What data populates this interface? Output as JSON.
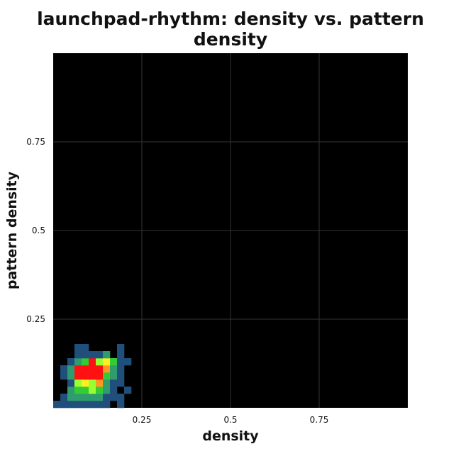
{
  "chart_data": {
    "type": "heatmap",
    "title": "launchpad-rhythm: density vs. pattern density",
    "xlabel": "density",
    "ylabel": "pattern density",
    "xlim": [
      0,
      1
    ],
    "ylim": [
      0,
      1
    ],
    "x_ticks": [
      "0.25",
      "0.5",
      "0.75"
    ],
    "y_ticks": [
      "0.25",
      "0.5",
      "0.75"
    ],
    "x_tick_values": [
      0.25,
      0.5,
      0.75
    ],
    "y_tick_values": [
      0.25,
      0.5,
      0.75
    ],
    "grid": true,
    "background_color": "#000000",
    "grid_color": "#333333",
    "colorscale": [
      "#0f2a5c",
      "#1f4f7a",
      "#2f9c6e",
      "#33cc33",
      "#99ff33",
      "#ffee22",
      "#ff9922",
      "#ff1111"
    ],
    "bin_size": 0.02,
    "cells": [
      {
        "x": 0.0,
        "y": 0.0,
        "v": 1
      },
      {
        "x": 0.02,
        "y": 0.0,
        "v": 1
      },
      {
        "x": 0.04,
        "y": 0.0,
        "v": 1
      },
      {
        "x": 0.06,
        "y": 0.0,
        "v": 1
      },
      {
        "x": 0.08,
        "y": 0.0,
        "v": 1
      },
      {
        "x": 0.1,
        "y": 0.0,
        "v": 1
      },
      {
        "x": 0.12,
        "y": 0.0,
        "v": 1
      },
      {
        "x": 0.14,
        "y": 0.0,
        "v": 1
      },
      {
        "x": 0.18,
        "y": 0.0,
        "v": 1
      },
      {
        "x": 0.02,
        "y": 0.02,
        "v": 1
      },
      {
        "x": 0.04,
        "y": 0.02,
        "v": 2
      },
      {
        "x": 0.06,
        "y": 0.02,
        "v": 2
      },
      {
        "x": 0.08,
        "y": 0.02,
        "v": 2
      },
      {
        "x": 0.1,
        "y": 0.02,
        "v": 2
      },
      {
        "x": 0.12,
        "y": 0.02,
        "v": 2
      },
      {
        "x": 0.14,
        "y": 0.02,
        "v": 1
      },
      {
        "x": 0.16,
        "y": 0.02,
        "v": 1
      },
      {
        "x": 0.18,
        "y": 0.02,
        "v": 1
      },
      {
        "x": 0.04,
        "y": 0.04,
        "v": 2
      },
      {
        "x": 0.06,
        "y": 0.04,
        "v": 3
      },
      {
        "x": 0.08,
        "y": 0.04,
        "v": 3
      },
      {
        "x": 0.1,
        "y": 0.04,
        "v": 4
      },
      {
        "x": 0.12,
        "y": 0.04,
        "v": 3
      },
      {
        "x": 0.14,
        "y": 0.04,
        "v": 2
      },
      {
        "x": 0.16,
        "y": 0.04,
        "v": 1
      },
      {
        "x": 0.2,
        "y": 0.04,
        "v": 1
      },
      {
        "x": 0.04,
        "y": 0.06,
        "v": 1
      },
      {
        "x": 0.06,
        "y": 0.06,
        "v": 4
      },
      {
        "x": 0.08,
        "y": 0.06,
        "v": 5
      },
      {
        "x": 0.1,
        "y": 0.06,
        "v": 4
      },
      {
        "x": 0.12,
        "y": 0.06,
        "v": 6
      },
      {
        "x": 0.14,
        "y": 0.06,
        "v": 2
      },
      {
        "x": 0.16,
        "y": 0.06,
        "v": 1
      },
      {
        "x": 0.18,
        "y": 0.06,
        "v": 1
      },
      {
        "x": 0.02,
        "y": 0.08,
        "v": 1
      },
      {
        "x": 0.04,
        "y": 0.08,
        "v": 2
      },
      {
        "x": 0.06,
        "y": 0.08,
        "v": 7
      },
      {
        "x": 0.08,
        "y": 0.08,
        "v": 7
      },
      {
        "x": 0.1,
        "y": 0.08,
        "v": 7
      },
      {
        "x": 0.12,
        "y": 0.08,
        "v": 7
      },
      {
        "x": 0.14,
        "y": 0.08,
        "v": 3
      },
      {
        "x": 0.16,
        "y": 0.08,
        "v": 2
      },
      {
        "x": 0.18,
        "y": 0.08,
        "v": 1
      },
      {
        "x": 0.02,
        "y": 0.1,
        "v": 1
      },
      {
        "x": 0.04,
        "y": 0.1,
        "v": 2
      },
      {
        "x": 0.06,
        "y": 0.1,
        "v": 7
      },
      {
        "x": 0.08,
        "y": 0.1,
        "v": 7
      },
      {
        "x": 0.1,
        "y": 0.1,
        "v": 7
      },
      {
        "x": 0.12,
        "y": 0.1,
        "v": 7
      },
      {
        "x": 0.14,
        "y": 0.1,
        "v": 6
      },
      {
        "x": 0.16,
        "y": 0.1,
        "v": 2
      },
      {
        "x": 0.18,
        "y": 0.1,
        "v": 1
      },
      {
        "x": 0.04,
        "y": 0.12,
        "v": 1
      },
      {
        "x": 0.06,
        "y": 0.12,
        "v": 2
      },
      {
        "x": 0.08,
        "y": 0.12,
        "v": 3
      },
      {
        "x": 0.1,
        "y": 0.12,
        "v": 7
      },
      {
        "x": 0.12,
        "y": 0.12,
        "v": 4
      },
      {
        "x": 0.14,
        "y": 0.12,
        "v": 5
      },
      {
        "x": 0.16,
        "y": 0.12,
        "v": 3
      },
      {
        "x": 0.18,
        "y": 0.12,
        "v": 1
      },
      {
        "x": 0.2,
        "y": 0.12,
        "v": 1
      },
      {
        "x": 0.06,
        "y": 0.14,
        "v": 1
      },
      {
        "x": 0.08,
        "y": 0.14,
        "v": 1
      },
      {
        "x": 0.1,
        "y": 0.14,
        "v": 1
      },
      {
        "x": 0.12,
        "y": 0.14,
        "v": 1
      },
      {
        "x": 0.14,
        "y": 0.14,
        "v": 2
      },
      {
        "x": 0.18,
        "y": 0.14,
        "v": 1
      },
      {
        "x": 0.06,
        "y": 0.16,
        "v": 1
      },
      {
        "x": 0.08,
        "y": 0.16,
        "v": 1
      },
      {
        "x": 0.18,
        "y": 0.16,
        "v": 1
      }
    ]
  }
}
